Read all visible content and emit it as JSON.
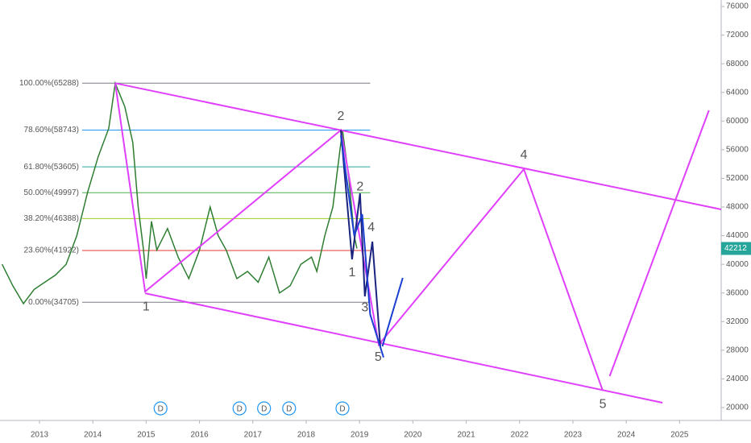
{
  "chart_data": {
    "type": "line",
    "xlim": [
      2012.26,
      2025.78
    ],
    "ylim": [
      18200,
      76900
    ],
    "xticks": [
      2013,
      2014,
      2015,
      2016,
      2017,
      2018,
      2019,
      2020,
      2021,
      2022,
      2023,
      2024,
      2025
    ],
    "yticks": [
      20000,
      24000,
      28000,
      32000,
      36000,
      40000,
      44000,
      48000,
      52000,
      56000,
      60000,
      64000,
      68000,
      72000,
      76000
    ],
    "series": [
      {
        "color": "#2e7d32",
        "x": [
          2012.3,
          2012.5,
          2012.7,
          2012.9,
          2013.1,
          2013.3,
          2013.5,
          2013.7,
          2013.9,
          2014.1,
          2014.3,
          2014.42,
          2014.6,
          2014.75,
          2014.85,
          2014.95,
          2015.0,
          2015.1,
          2015.2,
          2015.4,
          2015.6,
          2015.8,
          2016.0,
          2016.2,
          2016.35,
          2016.5,
          2016.7,
          2016.9,
          2017.1,
          2017.3,
          2017.5,
          2017.7,
          2017.9,
          2018.1,
          2018.2,
          2018.35,
          2018.5,
          2018.6,
          2018.68,
          2018.8,
          2018.9,
          2018.95
        ],
        "values": [
          40000,
          37000,
          34500,
          36500,
          37500,
          38500,
          40000,
          44000,
          50000,
          55000,
          59000,
          65288,
          62000,
          57000,
          48000,
          42000,
          38000,
          46000,
          42000,
          45000,
          41000,
          38000,
          42000,
          48000,
          44000,
          42000,
          38000,
          39000,
          37500,
          41000,
          36000,
          37000,
          40000,
          41000,
          39000,
          44000,
          48000,
          54000,
          58743,
          52000,
          44000,
          42212
        ]
      }
    ],
    "last_price": 42212,
    "last_price_color": "#26a69a",
    "fib_levels": [
      {
        "value": 65288,
        "label": "100.00%(65288)",
        "color": "#787b86"
      },
      {
        "value": 58743,
        "label": "78.60%(58743)",
        "color": "#2196f3"
      },
      {
        "value": 53605,
        "label": "61.80%(53605)",
        "color": "#26a69a"
      },
      {
        "value": 49997,
        "label": "50.00%(49997)",
        "color": "#4caf50"
      },
      {
        "value": 46388,
        "label": "38.20%(46388)",
        "color": "#9ccc22"
      },
      {
        "value": 41922,
        "label": "23.60%(41922)",
        "color": "#e53935"
      },
      {
        "value": 34705,
        "label": "0.00%(34705)",
        "color": "#787b86"
      }
    ],
    "fib_x": [
      2013.8,
      2019.2
    ],
    "drawings": [
      {
        "color": "#e040fb",
        "x": [
          2014.42,
          2025.78
        ],
        "y": [
          65288,
          47660
        ]
      },
      {
        "color": "#e040fb",
        "x": [
          2014.98,
          2024.68
        ],
        "y": [
          35960,
          20670
        ]
      },
      {
        "color": "#e040fb",
        "x": [
          2014.42,
          2014.98,
          2018.65,
          2019.36,
          2022.08,
          2023.56
        ],
        "y": [
          65288,
          36190,
          58743,
          28780,
          53285,
          22360
        ]
      },
      {
        "color": "#e040fb",
        "x": [
          2023.69,
          2025.55
        ],
        "y": [
          24380,
          61490
        ]
      },
      {
        "color": "#1a237e",
        "x": [
          2018.65,
          2018.86,
          2019.01,
          2019.1,
          2019.24,
          2019.39
        ],
        "y": [
          58743,
          40690,
          49900,
          35520,
          43160,
          28550
        ]
      },
      {
        "color": "#1a3fd0",
        "x": [
          2018.65,
          2018.9,
          2019.05,
          2019.2,
          2019.45
        ],
        "y": [
          58000,
          44000,
          47000,
          33000,
          27000
        ]
      },
      {
        "color": "#1a3fd0",
        "x": [
          2019.43,
          2019.81
        ],
        "y": [
          28550,
          38100
        ]
      }
    ],
    "wave_labels": [
      {
        "text": "1",
        "x": 2015.0,
        "y": 34000,
        "color": "#c2189b"
      },
      {
        "text": "2",
        "x": 2018.65,
        "y": 60600,
        "color": "#c2189b"
      },
      {
        "text": "4",
        "x": 2022.08,
        "y": 55200,
        "color": "#c2189b"
      },
      {
        "text": "5",
        "x": 2023.56,
        "y": 20400,
        "color": "#c2189b"
      },
      {
        "text": "1",
        "x": 2018.86,
        "y": 38800,
        "color": "#1a237e"
      },
      {
        "text": "2",
        "x": 2019.01,
        "y": 50800,
        "color": "#1a237e"
      },
      {
        "text": "3",
        "x": 2019.1,
        "y": 33900,
        "color": "#1a237e"
      },
      {
        "text": "4",
        "x": 2019.22,
        "y": 45100,
        "color": "#1a237e"
      },
      {
        "text": "5",
        "x": 2019.35,
        "y": 27000,
        "color": "#1a237e"
      }
    ],
    "events": [
      {
        "label": "D",
        "x": 2015.27
      },
      {
        "label": "D",
        "x": 2016.75
      },
      {
        "label": "D",
        "x": 2017.21
      },
      {
        "label": "D",
        "x": 2017.68
      },
      {
        "label": "D",
        "x": 2018.68
      }
    ]
  }
}
